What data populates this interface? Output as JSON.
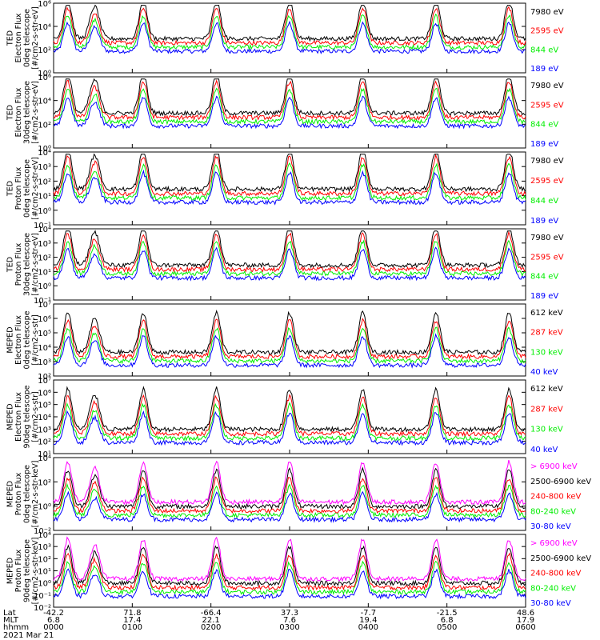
{
  "chart_data": [
    {
      "type": "line",
      "ylabel": [
        "TED",
        "Electron Flux",
        "0deg telescope",
        "[#/cm2-s-str-eV]"
      ],
      "y_scale": "log",
      "ylim": [
        1,
        1000000
      ],
      "y_ticks": [
        "10⁶",
        "10⁴",
        "10²",
        "10⁰"
      ],
      "series": [
        {
          "name": "7980 eV",
          "color": "#000000"
        },
        {
          "name": "2595 eV",
          "color": "#ff0000"
        },
        {
          "name": "844 eV",
          "color": "#00ee00"
        },
        {
          "name": "189 eV",
          "color": "#0000ff"
        }
      ]
    },
    {
      "type": "line",
      "ylabel": [
        "TED",
        "Electron Flux",
        "30deg telescope",
        "[#/cm2-s-str-eV]"
      ],
      "y_scale": "log",
      "ylim": [
        1,
        1000000
      ],
      "y_ticks": [
        "10⁶",
        "10⁴",
        "10²",
        "10⁰"
      ],
      "series": [
        {
          "name": "7980 eV",
          "color": "#000000"
        },
        {
          "name": "2595 eV",
          "color": "#ff0000"
        },
        {
          "name": "844 eV",
          "color": "#00ee00"
        },
        {
          "name": "189 eV",
          "color": "#0000ff"
        }
      ]
    },
    {
      "type": "line",
      "ylabel": [
        "TED",
        "Proton Flux",
        "0deg telescope",
        "[#/cm2-s-str-eV]"
      ],
      "y_scale": "log",
      "ylim": [
        0.1,
        10000
      ],
      "y_ticks": [
        "10⁴",
        "10³",
        "10²",
        "10¹",
        "10⁰",
        "10⁻¹"
      ],
      "series": [
        {
          "name": "7980 eV",
          "color": "#000000"
        },
        {
          "name": "2595 eV",
          "color": "#ff0000"
        },
        {
          "name": "844 eV",
          "color": "#00ee00"
        },
        {
          "name": "189 eV",
          "color": "#0000ff"
        }
      ]
    },
    {
      "type": "line",
      "ylabel": [
        "TED",
        "Proton Flux",
        "30deg telescope",
        "[#/cm2-s-str-eV]"
      ],
      "y_scale": "log",
      "ylim": [
        0.1,
        10000
      ],
      "y_ticks": [
        "10⁴",
        "10³",
        "10²",
        "10¹",
        "10⁰",
        "10⁻¹"
      ],
      "series": [
        {
          "name": "7980 eV",
          "color": "#000000"
        },
        {
          "name": "2595 eV",
          "color": "#ff0000"
        },
        {
          "name": "844 eV",
          "color": "#00ee00"
        },
        {
          "name": "189 eV",
          "color": "#0000ff"
        }
      ]
    },
    {
      "type": "line",
      "ylabel": [
        "MEPED",
        "Electron Flux",
        "0deg telescope",
        "[#/cm2-s-str]"
      ],
      "y_scale": "log",
      "ylim": [
        100,
        10000000
      ],
      "y_ticks": [
        "10⁷",
        "10⁶",
        "10⁵",
        "10⁴",
        "10³",
        "10²"
      ],
      "series": [
        {
          "name": "612 keV",
          "color": "#000000"
        },
        {
          "name": "287 keV",
          "color": "#ff0000"
        },
        {
          "name": "130 keV",
          "color": "#00ee00"
        },
        {
          "name": "40 keV",
          "color": "#0000ff"
        }
      ]
    },
    {
      "type": "line",
      "ylabel": [
        "MEPED",
        "Electron Flux",
        "90deg telescope",
        "[#/cm2-s-str]"
      ],
      "y_scale": "log",
      "ylim": [
        10,
        10000000
      ],
      "y_ticks": [
        "10⁷",
        "10⁶",
        "10⁵",
        "10⁴",
        "10³",
        "10²",
        "10¹"
      ],
      "series": [
        {
          "name": "612 keV",
          "color": "#000000"
        },
        {
          "name": "287 keV",
          "color": "#ff0000"
        },
        {
          "name": "130 keV",
          "color": "#00ee00"
        },
        {
          "name": "40 keV",
          "color": "#0000ff"
        }
      ]
    },
    {
      "type": "line",
      "ylabel": [
        "MEPED",
        "Proton Flux",
        "0deg telescope",
        "[#/cm2-s-str-keV]"
      ],
      "y_scale": "log",
      "ylim": [
        0.01,
        100000
      ],
      "y_ticks": [
        "10⁴",
        "10²",
        "10⁰",
        "10⁻²"
      ],
      "series": [
        {
          "name": "> 6900 keV",
          "color": "#ff00ff"
        },
        {
          "name": "2500-6900 keV",
          "color": "#000000"
        },
        {
          "name": "240-800 keV",
          "color": "#ff0000"
        },
        {
          "name": "80-240 keV",
          "color": "#00ee00"
        },
        {
          "name": "30-80 keV",
          "color": "#0000ff"
        }
      ]
    },
    {
      "type": "line",
      "ylabel": [
        "MEPED",
        "Proton Flux",
        "90deg telescope",
        "[#/cm2-s-str-keV]"
      ],
      "y_scale": "log",
      "ylim": [
        0.01,
        100000
      ],
      "y_ticks": [
        "10⁴",
        "10³",
        "10²",
        "10¹",
        "10⁰",
        "10⁻¹",
        "10⁻²"
      ],
      "series": [
        {
          "name": "> 6900 keV",
          "color": "#ff00ff"
        },
        {
          "name": "2500-6900 keV",
          "color": "#000000"
        },
        {
          "name": "240-800 keV",
          "color": "#ff0000"
        },
        {
          "name": "80-240 keV",
          "color": "#00ee00"
        },
        {
          "name": "30-80 keV",
          "color": "#0000ff"
        }
      ]
    }
  ],
  "x_axis": {
    "row_labels": [
      "Lat",
      "MLT",
      "hhmm"
    ],
    "date": "2021 Mar 21",
    "ticks": [
      {
        "lat": "-42.2",
        "mlt": "6.8",
        "hhmm": "0000"
      },
      {
        "lat": "71.8",
        "mlt": "17.4",
        "hhmm": "0100"
      },
      {
        "lat": "-66.4",
        "mlt": "22.1",
        "hhmm": "0200"
      },
      {
        "lat": "37.3",
        "mlt": "7.6",
        "hhmm": "0300"
      },
      {
        "lat": "-7.7",
        "mlt": "19.4",
        "hhmm": "0400"
      },
      {
        "lat": "-21.5",
        "mlt": "6.8",
        "hhmm": "0500"
      },
      {
        "lat": "48.6",
        "mlt": "17.9",
        "hhmm": "0600"
      }
    ]
  }
}
